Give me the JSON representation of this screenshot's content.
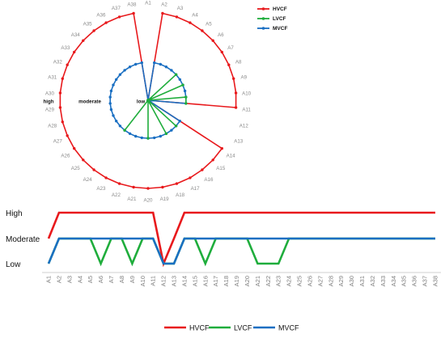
{
  "chart_data": [
    {
      "type": "radar",
      "categories": [
        "A1",
        "A2",
        "A3",
        "A4",
        "A5",
        "A6",
        "A7",
        "A8",
        "A9",
        "A10",
        "A11",
        "A12",
        "A13",
        "A14",
        "A15",
        "A16",
        "A17",
        "A18",
        "A19",
        "A20",
        "A21",
        "A22",
        "A23",
        "A24",
        "A25",
        "A26",
        "A27",
        "A28",
        "A29",
        "A30",
        "A31",
        "A32",
        "A33",
        "A34",
        "A35",
        "A36",
        "A37",
        "A38"
      ],
      "levels": [
        "low",
        "moderate",
        "high"
      ],
      "series": [
        {
          "name": "HVCF",
          "values": [
            1,
            3,
            3,
            3,
            3,
            3,
            3,
            3,
            3,
            3,
            3,
            1,
            1,
            3,
            3,
            3,
            3,
            3,
            3,
            3,
            3,
            3,
            3,
            3,
            3,
            3,
            3,
            3,
            3,
            3,
            3,
            3,
            3,
            3,
            3,
            3,
            3,
            3
          ]
        },
        {
          "name": "LVCF",
          "values": [
            null,
            null,
            null,
            null,
            1,
            2,
            1,
            2,
            1,
            2,
            2,
            null,
            null,
            null,
            2,
            1,
            2,
            null,
            null,
            2,
            1,
            1,
            1,
            2,
            null,
            null,
            null,
            null,
            null,
            null,
            null,
            null,
            null,
            null,
            null,
            null,
            null,
            null
          ]
        },
        {
          "name": "MVCF",
          "values": [
            1,
            2,
            2,
            2,
            2,
            2,
            2,
            2,
            2,
            2,
            2,
            1,
            1,
            2,
            2,
            2,
            2,
            2,
            2,
            2,
            2,
            2,
            2,
            2,
            2,
            2,
            2,
            2,
            2,
            2,
            2,
            2,
            2,
            2,
            2,
            2,
            2,
            2
          ]
        }
      ],
      "legend_position": "top-right"
    },
    {
      "type": "line",
      "categories": [
        "A1",
        "A2",
        "A3",
        "A4",
        "A5",
        "A6",
        "A7",
        "A8",
        "A9",
        "A10",
        "A11",
        "A12",
        "A13",
        "A14",
        "A15",
        "A16",
        "A17",
        "A18",
        "A19",
        "A20",
        "A21",
        "A22",
        "A23",
        "A24",
        "A25",
        "A26",
        "A27",
        "A28",
        "A29",
        "A30",
        "A31",
        "A32",
        "A33",
        "A34",
        "A35",
        "A36",
        "A37",
        "A38"
      ],
      "y_levels": [
        "Low",
        "Moderate",
        "High"
      ],
      "series": [
        {
          "name": "HVCF",
          "values": [
            2,
            3,
            3,
            3,
            3,
            3,
            3,
            3,
            3,
            3,
            3,
            1,
            2,
            3,
            3,
            3,
            3,
            3,
            3,
            3,
            3,
            3,
            3,
            3,
            3,
            3,
            3,
            3,
            3,
            3,
            3,
            3,
            3,
            3,
            3,
            3,
            3,
            3
          ]
        },
        {
          "name": "LVCF",
          "values": [
            1,
            2,
            2,
            2,
            2,
            1,
            2,
            2,
            1,
            2,
            2,
            1,
            1,
            2,
            2,
            1,
            2,
            2,
            2,
            2,
            1,
            1,
            1,
            2,
            2,
            2,
            2,
            2,
            2,
            2,
            2,
            2,
            2,
            2,
            2,
            2,
            2,
            2
          ]
        },
        {
          "name": "MVCF",
          "values": [
            1,
            2,
            2,
            2,
            2,
            2,
            2,
            2,
            2,
            2,
            2,
            1,
            1,
            2,
            2,
            2,
            2,
            2,
            2,
            2,
            2,
            2,
            2,
            2,
            2,
            2,
            2,
            2,
            2,
            2,
            2,
            2,
            2,
            2,
            2,
            2,
            2,
            2
          ]
        }
      ],
      "legend_position": "bottom"
    }
  ],
  "colors": {
    "HVCF": "#e8191c",
    "LVCF": "#1fad3c",
    "MVCF": "#1a6fc2"
  }
}
